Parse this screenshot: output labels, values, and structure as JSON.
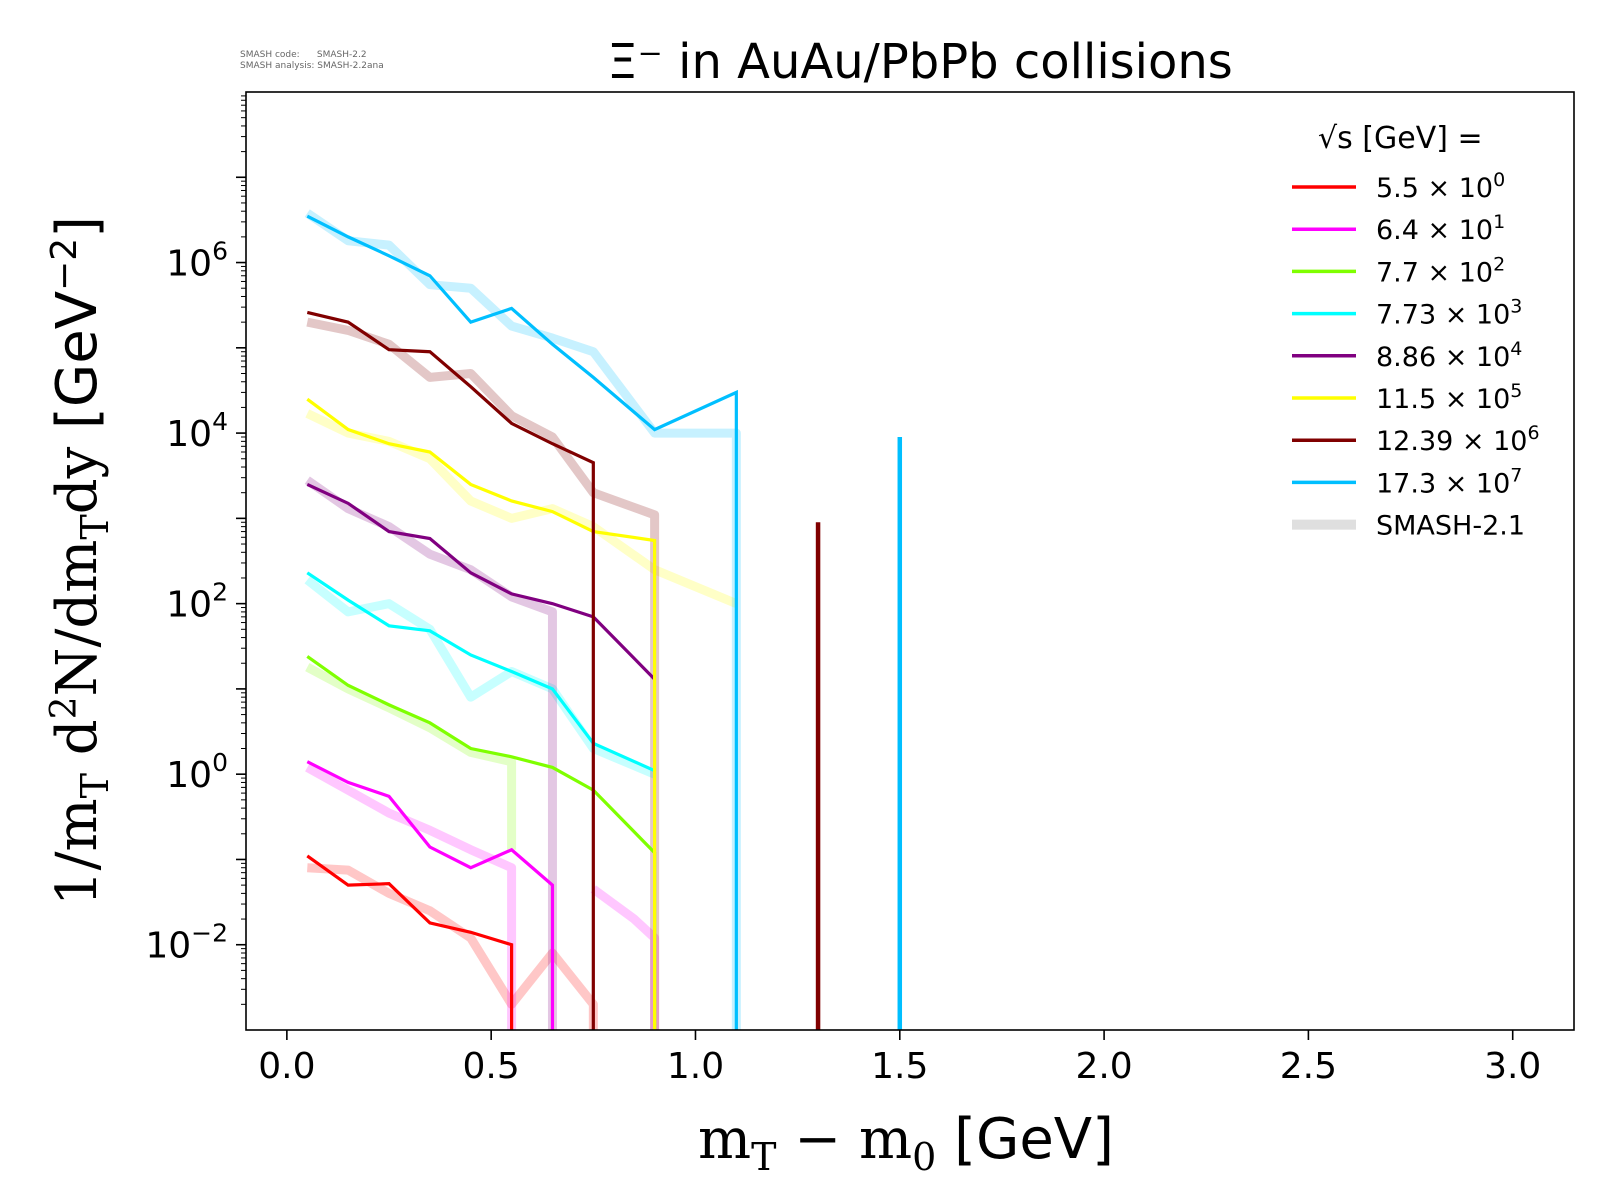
{
  "meta": {
    "code_line": "SMASH code:      SMASH-2.2",
    "analysis_line": "SMASH analysis: SMASH-2.2ana"
  },
  "chart_data": {
    "type": "line",
    "title": "Ξ⁻ in AuAu/PbPb collisions",
    "xlabel": "m_T − m_0 [GeV]",
    "ylabel": "1/m_T d²N/dm_T dy [GeV⁻²]",
    "xlim": [
      -0.1,
      3.15
    ],
    "ylim": [
      0.001,
      100000000
    ],
    "y_scale": "log",
    "grid": false,
    "legend_placement": "top-right",
    "legend_title": "√s [GeV] =",
    "x_ticks": [
      "0.0",
      "0.5",
      "1.0",
      "1.5",
      "2.0",
      "2.5",
      "3.0"
    ],
    "x_tick_values": [
      0,
      0.5,
      1.0,
      1.5,
      2.0,
      2.5,
      3.0
    ],
    "y_ticks": [
      {
        "base": "10",
        "exp": "−2",
        "value": 0.01
      },
      {
        "base": "10",
        "exp": "0",
        "value": 1
      },
      {
        "base": "10",
        "exp": "2",
        "value": 100
      },
      {
        "base": "10",
        "exp": "4",
        "value": 10000
      },
      {
        "base": "10",
        "exp": "6",
        "value": 1000000
      }
    ],
    "series": [
      {
        "name": "5.5 × 10⁰",
        "mant": "5.5",
        "exp": "0",
        "color": "#ff0000",
        "x": [
          0.05,
          0.15,
          0.25,
          0.35,
          0.45,
          0.55,
          0.55
        ],
        "y": [
          0.11,
          0.05,
          0.052,
          0.018,
          0.014,
          0.01,
          0.001
        ]
      },
      {
        "name": "6.4 × 10¹",
        "mant": "6.4",
        "exp": "1",
        "color": "#ff00ff",
        "x": [
          0.05,
          0.15,
          0.25,
          0.35,
          0.45,
          0.55,
          0.65,
          0.65
        ],
        "y": [
          1.4,
          0.8,
          0.55,
          0.14,
          0.08,
          0.13,
          0.05,
          0.001
        ]
      },
      {
        "name": "7.7 × 10²",
        "mant": "7.7",
        "exp": "2",
        "color": "#7fff00",
        "x": [
          0.05,
          0.15,
          0.25,
          0.35,
          0.45,
          0.55,
          0.65,
          0.75,
          0.9,
          0.9
        ],
        "y": [
          24,
          11,
          6.5,
          4,
          2,
          1.6,
          1.2,
          0.65,
          0.12,
          0.001
        ]
      },
      {
        "name": "7.73 × 10³",
        "mant": "7.73",
        "exp": "3",
        "color": "#00ffff",
        "x": [
          0.05,
          0.15,
          0.25,
          0.35,
          0.45,
          0.55,
          0.65,
          0.75,
          0.9
        ],
        "y": [
          230,
          110,
          55,
          48,
          25,
          16,
          10,
          2.3,
          1.1
        ]
      },
      {
        "name": "8.86 × 10⁴",
        "mant": "8.86",
        "exp": "4",
        "color": "#800080",
        "x": [
          0.05,
          0.15,
          0.25,
          0.35,
          0.45,
          0.55,
          0.65,
          0.75,
          0.9
        ],
        "y": [
          2500,
          1500,
          700,
          580,
          230,
          130,
          100,
          70,
          13
        ]
      },
      {
        "name": "11.5 × 10⁵",
        "mant": "11.5",
        "exp": "5",
        "color": "#ffff00",
        "x": [
          0.05,
          0.15,
          0.25,
          0.35,
          0.45,
          0.55,
          0.65,
          0.75,
          0.9,
          0.9
        ],
        "y": [
          25000,
          11000,
          7500,
          6000,
          2500,
          1600,
          1200,
          700,
          550,
          0.001
        ]
      },
      {
        "name": "12.39 × 10⁶",
        "mant": "12.39",
        "exp": "6",
        "color": "#800000",
        "x": [
          0.05,
          0.15,
          0.25,
          0.35,
          0.45,
          0.55,
          0.65,
          0.75,
          0.75
        ],
        "y": [
          260000,
          200000,
          95000,
          90000,
          35000,
          13000,
          7500,
          4500,
          0.001
        ]
      },
      {
        "name": "17.3 × 10⁷",
        "mant": "17.3",
        "exp": "7",
        "color": "#00bfff",
        "x": [
          0.05,
          0.15,
          0.25,
          0.35,
          0.45,
          0.55,
          0.65,
          0.75,
          0.9,
          1.1,
          1.1
        ],
        "y": [
          3500000,
          2000000,
          1200000,
          700000,
          200000,
          290000,
          110000,
          45000,
          11000,
          30000,
          0.001
        ]
      },
      {
        "name": "SMASH-2.1",
        "color": "#d9d9d9",
        "reference": true
      }
    ],
    "extra_segments": [
      {
        "color": "#800000",
        "x": [
          1.3,
          1.3
        ],
        "y": [
          0.001,
          900
        ]
      },
      {
        "color": "#00bfff",
        "x": [
          1.5,
          1.5
        ],
        "y": [
          0.001,
          9000
        ]
      }
    ],
    "reference_smash_2_1": [
      {
        "color": "#ff0000",
        "x": [
          0.05,
          0.15,
          0.25,
          0.35,
          0.45,
          0.55,
          0.65,
          0.75,
          0.75
        ],
        "y": [
          0.08,
          0.075,
          0.04,
          0.025,
          0.012,
          0.002,
          0.008,
          0.002,
          0.001
        ]
      },
      {
        "color": "#ff00ff",
        "x": [
          0.05,
          0.15,
          0.25,
          0.35,
          0.45,
          0.55,
          0.55
        ],
        "y": [
          1.2,
          0.65,
          0.35,
          0.22,
          0.13,
          0.08,
          0.001
        ]
      },
      {
        "color": "#ff00ff",
        "x": [
          0.75,
          0.85,
          0.9,
          0.9
        ],
        "y": [
          0.045,
          0.02,
          0.012,
          0.001
        ]
      },
      {
        "color": "#7fff00",
        "x": [
          0.05,
          0.15,
          0.25,
          0.35,
          0.45,
          0.55,
          0.55
        ],
        "y": [
          18,
          10,
          6,
          3.5,
          1.8,
          1.4,
          0.13
        ]
      },
      {
        "color": "#00ffff",
        "x": [
          0.05,
          0.15,
          0.25,
          0.35,
          0.45,
          0.55,
          0.65,
          0.75,
          0.9
        ],
        "y": [
          190,
          80,
          100,
          50,
          8,
          16,
          10,
          2,
          1
        ]
      },
      {
        "color": "#800080",
        "x": [
          0.05,
          0.15,
          0.25,
          0.35,
          0.45,
          0.55,
          0.65,
          0.65
        ],
        "y": [
          2800,
          1300,
          800,
          380,
          250,
          120,
          80,
          0.001
        ]
      },
      {
        "color": "#ffff00",
        "x": [
          0.05,
          0.15,
          0.25,
          0.35,
          0.45,
          0.55,
          0.65,
          0.75,
          0.9,
          1.1
        ],
        "y": [
          17000,
          10000,
          8000,
          5000,
          1600,
          1000,
          1300,
          800,
          250,
          100
        ]
      },
      {
        "color": "#800000",
        "x": [
          0.05,
          0.15,
          0.25,
          0.35,
          0.45,
          0.55,
          0.65,
          0.75,
          0.9,
          0.9
        ],
        "y": [
          200000,
          160000,
          110000,
          45000,
          50000,
          16000,
          9000,
          2000,
          1100,
          0.001
        ]
      },
      {
        "color": "#00bfff",
        "x": [
          0.05,
          0.15,
          0.25,
          0.35,
          0.45,
          0.55,
          0.65,
          0.75,
          0.9,
          1.1,
          1.1
        ],
        "y": [
          3800000,
          1800000,
          1600000,
          550000,
          500000,
          180000,
          130000,
          90000,
          10000,
          10000,
          0.001
        ]
      }
    ]
  }
}
